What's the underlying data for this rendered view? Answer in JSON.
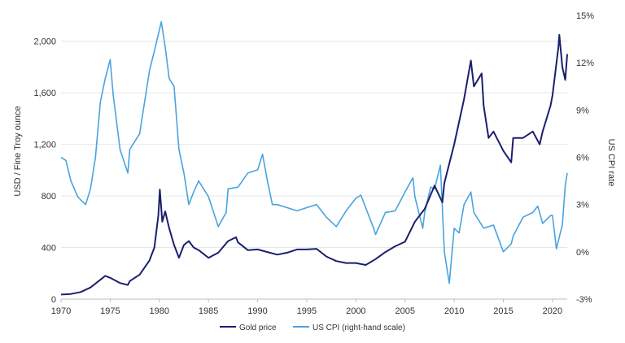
{
  "chart_data": {
    "type": "line",
    "ylabel": "USD / Fine Troy ounce",
    "y2label": "US CPI rate",
    "x_ticks": [
      "1970",
      "1975",
      "1980",
      "1985",
      "1990",
      "1995",
      "2000",
      "2005",
      "2010",
      "2015",
      "2020"
    ],
    "y_ticks": [
      "0",
      "400",
      "800",
      "1,200",
      "1,600",
      "2,000"
    ],
    "y2_ticks": [
      "-3%",
      "0%",
      "3%",
      "6%",
      "9%",
      "12%",
      "15%"
    ],
    "xlim": [
      1970,
      2021.5
    ],
    "ylim": [
      0,
      2200
    ],
    "y2lim": [
      -3,
      15
    ],
    "grid": true,
    "legend_position": "bottom",
    "series": [
      {
        "name": "Gold price",
        "axis": "left",
        "color": "#1a1f6e",
        "points": [
          [
            1970,
            35
          ],
          [
            1971,
            40
          ],
          [
            1972,
            55
          ],
          [
            1973,
            90
          ],
          [
            1974,
            150
          ],
          [
            1974.5,
            180
          ],
          [
            1975,
            165
          ],
          [
            1976,
            125
          ],
          [
            1976.8,
            110
          ],
          [
            1977,
            140
          ],
          [
            1978,
            190
          ],
          [
            1979,
            300
          ],
          [
            1979.5,
            400
          ],
          [
            1979.9,
            650
          ],
          [
            1980.05,
            850
          ],
          [
            1980.3,
            600
          ],
          [
            1980.6,
            680
          ],
          [
            1981,
            550
          ],
          [
            1981.5,
            420
          ],
          [
            1982,
            320
          ],
          [
            1982.5,
            420
          ],
          [
            1983,
            450
          ],
          [
            1983.5,
            400
          ],
          [
            1984,
            380
          ],
          [
            1985,
            320
          ],
          [
            1986,
            360
          ],
          [
            1987,
            450
          ],
          [
            1987.8,
            480
          ],
          [
            1988,
            440
          ],
          [
            1989,
            380
          ],
          [
            1990,
            385
          ],
          [
            1991,
            365
          ],
          [
            1992,
            345
          ],
          [
            1993,
            360
          ],
          [
            1994,
            385
          ],
          [
            1995,
            385
          ],
          [
            1996,
            390
          ],
          [
            1997,
            330
          ],
          [
            1998,
            295
          ],
          [
            1999,
            280
          ],
          [
            2000,
            280
          ],
          [
            2001,
            265
          ],
          [
            2002,
            310
          ],
          [
            2003,
            365
          ],
          [
            2004,
            410
          ],
          [
            2005,
            445
          ],
          [
            2006,
            600
          ],
          [
            2007,
            700
          ],
          [
            2008,
            880
          ],
          [
            2008.8,
            750
          ],
          [
            2009,
            900
          ],
          [
            2010,
            1200
          ],
          [
            2011,
            1550
          ],
          [
            2011.7,
            1850
          ],
          [
            2012,
            1650
          ],
          [
            2012.8,
            1750
          ],
          [
            2013,
            1500
          ],
          [
            2013.5,
            1250
          ],
          [
            2014,
            1300
          ],
          [
            2015,
            1150
          ],
          [
            2015.8,
            1060
          ],
          [
            2016,
            1250
          ],
          [
            2017,
            1250
          ],
          [
            2018,
            1300
          ],
          [
            2018.7,
            1200
          ],
          [
            2019,
            1300
          ],
          [
            2019.8,
            1500
          ],
          [
            2020,
            1580
          ],
          [
            2020.6,
            1950
          ],
          [
            2020.7,
            2050
          ],
          [
            2021,
            1800
          ],
          [
            2021.3,
            1700
          ],
          [
            2021.5,
            1900
          ]
        ]
      },
      {
        "name": "US CPI (right-hand scale)",
        "axis": "right",
        "color": "#4aa3df",
        "points": [
          [
            1970,
            6.0
          ],
          [
            1970.5,
            5.8
          ],
          [
            1971,
            4.5
          ],
          [
            1971.7,
            3.5
          ],
          [
            1972,
            3.3
          ],
          [
            1972.5,
            3.0
          ],
          [
            1973,
            4.0
          ],
          [
            1973.5,
            6.0
          ],
          [
            1974,
            9.5
          ],
          [
            1974.5,
            11.0
          ],
          [
            1975,
            12.2
          ],
          [
            1975.3,
            10.0
          ],
          [
            1976,
            6.5
          ],
          [
            1976.8,
            5.0
          ],
          [
            1977,
            6.5
          ],
          [
            1978,
            7.5
          ],
          [
            1979,
            11.5
          ],
          [
            1979.6,
            13.0
          ],
          [
            1980.2,
            14.6
          ],
          [
            1980.6,
            13.0
          ],
          [
            1981,
            11.0
          ],
          [
            1981.5,
            10.5
          ],
          [
            1982,
            6.5
          ],
          [
            1982.5,
            5.0
          ],
          [
            1983,
            3.0
          ],
          [
            1983.5,
            3.8
          ],
          [
            1984,
            4.5
          ],
          [
            1985,
            3.5
          ],
          [
            1986,
            1.6
          ],
          [
            1986.8,
            2.5
          ],
          [
            1987,
            4.0
          ],
          [
            1988,
            4.1
          ],
          [
            1989,
            5.0
          ],
          [
            1990,
            5.2
          ],
          [
            1990.5,
            6.2
          ],
          [
            1991,
            4.5
          ],
          [
            1991.5,
            3.0
          ],
          [
            1992,
            3.0
          ],
          [
            1993,
            2.8
          ],
          [
            1994,
            2.6
          ],
          [
            1995,
            2.8
          ],
          [
            1996,
            3.0
          ],
          [
            1997,
            2.2
          ],
          [
            1998,
            1.6
          ],
          [
            1999,
            2.6
          ],
          [
            2000,
            3.4
          ],
          [
            2000.5,
            3.6
          ],
          [
            2001,
            2.8
          ],
          [
            2001.8,
            1.5
          ],
          [
            2002,
            1.1
          ],
          [
            2003,
            2.5
          ],
          [
            2004,
            2.6
          ],
          [
            2005,
            3.8
          ],
          [
            2005.8,
            4.7
          ],
          [
            2006,
            3.5
          ],
          [
            2006.8,
            1.5
          ],
          [
            2007,
            2.5
          ],
          [
            2007.6,
            4.1
          ],
          [
            2008,
            4.0
          ],
          [
            2008.6,
            5.5
          ],
          [
            2009,
            0.0
          ],
          [
            2009.5,
            -2.0
          ],
          [
            2010,
            1.5
          ],
          [
            2010.5,
            1.2
          ],
          [
            2011,
            3.0
          ],
          [
            2011.7,
            3.8
          ],
          [
            2012,
            2.5
          ],
          [
            2012.8,
            1.7
          ],
          [
            2013,
            1.5
          ],
          [
            2014,
            1.7
          ],
          [
            2015,
            0.0
          ],
          [
            2015.8,
            0.5
          ],
          [
            2016,
            1.0
          ],
          [
            2017,
            2.2
          ],
          [
            2018,
            2.5
          ],
          [
            2018.5,
            2.9
          ],
          [
            2019,
            1.8
          ],
          [
            2019.8,
            2.3
          ],
          [
            2020,
            2.3
          ],
          [
            2020.4,
            0.2
          ],
          [
            2020.8,
            1.2
          ],
          [
            2021,
            1.7
          ],
          [
            2021.3,
            4.2
          ],
          [
            2021.5,
            5.0
          ]
        ]
      }
    ]
  }
}
